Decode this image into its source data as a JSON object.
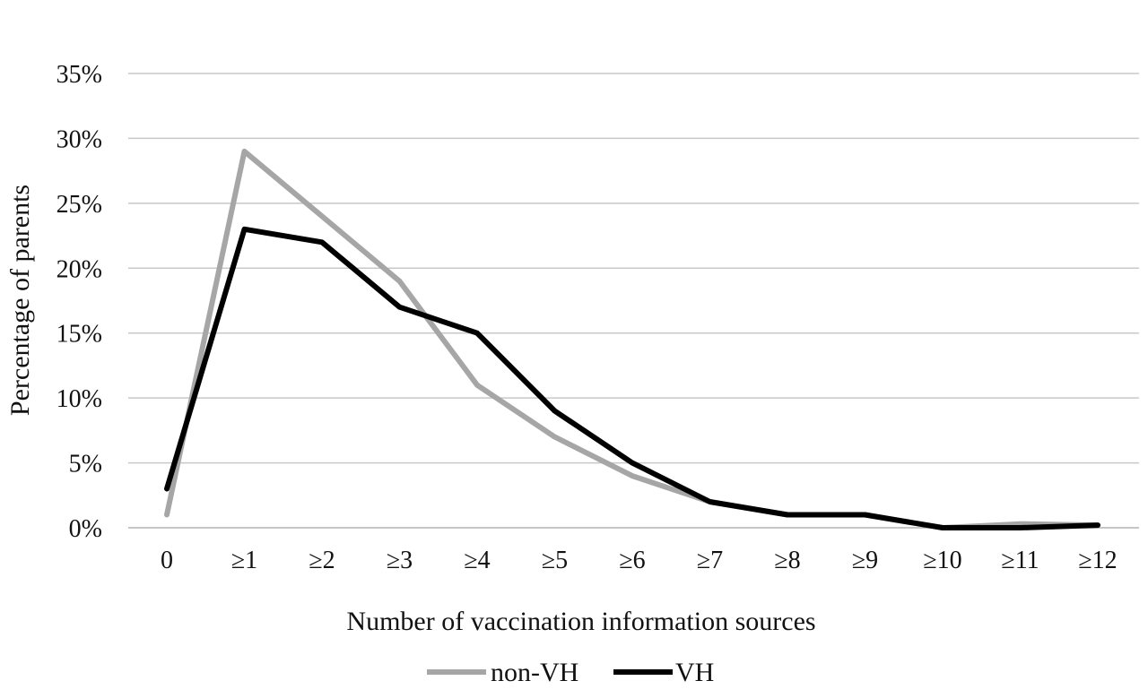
{
  "chart_data": {
    "type": "line",
    "title": "",
    "xlabel": "Number of vaccination information sources",
    "ylabel": "Percentage of parents",
    "categories": [
      "0",
      "≥1",
      "≥2",
      "≥3",
      "≥4",
      "≥5",
      "≥6",
      "≥7",
      "≥8",
      "≥9",
      "≥10",
      "≥11",
      "≥12"
    ],
    "y_ticks": [
      "0%",
      "5%",
      "10%",
      "15%",
      "20%",
      "25%",
      "30%",
      "35%"
    ],
    "ylim": [
      0,
      35
    ],
    "grid": true,
    "legend_position": "bottom",
    "series": [
      {
        "name": "non-VH",
        "color": "#a6a6a6",
        "values": [
          1,
          29,
          24,
          19,
          11,
          7,
          4,
          2,
          1,
          1,
          0,
          0.3,
          0.2
        ]
      },
      {
        "name": "VH",
        "color": "#000000",
        "values": [
          3,
          23,
          22,
          17,
          15,
          9,
          5,
          2,
          1,
          1,
          0,
          0,
          0.2
        ]
      }
    ]
  }
}
